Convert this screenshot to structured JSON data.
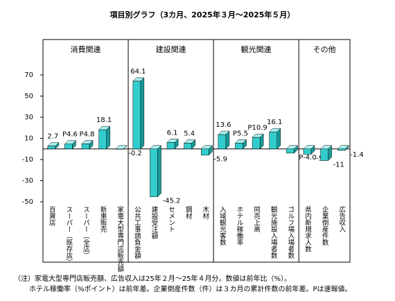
{
  "chart_data": {
    "type": "bar",
    "title": "項目別グラフ（3カ月、2025年３月～2025年５月）",
    "sections": [
      "消費関連",
      "建設関連",
      "観光関連",
      "その他"
    ],
    "categories": [
      "百貨店",
      "スーパー（既存店）",
      "スーパー（全店）",
      "新車販売",
      "家電大型専門店販売額",
      "公共工事請負金額",
      "建設受注額",
      "セメント",
      "鋼材",
      "木材",
      "入域観光客数",
      "ホテル稼働率",
      "同売上高",
      "観光施設入場者数",
      "ゴルフ場入場者数",
      "県内新規求人数",
      "企業倒産件数",
      "広告収入"
    ],
    "values": [
      2.7,
      4.6,
      4.8,
      18.1,
      -0.2,
      64.1,
      -45.2,
      6.1,
      5.4,
      -5.9,
      13.6,
      5.5,
      10.9,
      16.1,
      -4.0,
      -5.0,
      -11,
      -1.4
    ],
    "value_labels": [
      "2.7",
      "P4.6",
      "P4.8",
      "18.1",
      "-0.2",
      "64.1",
      "-45.2",
      "6.1",
      "5.4",
      "-5.9",
      "13.6",
      "P5.5",
      "P10.9",
      "16.1",
      "P-4.0",
      "-5.0",
      "-11",
      "-1.4"
    ],
    "color": "#33cccc",
    "ylim": [
      -50,
      70
    ],
    "yticks": [
      -50,
      -30,
      -10,
      10,
      30,
      50,
      70
    ],
    "notes": [
      "（注）家電大型専門店販売額、広告収入は25年２月～25年４月分。数値は前年比（%）。",
      "ホテル稼働率（%ポイント）は前年差。企業倒産件数（件）は３カ月の累計件数の前年差。Pは速報値。"
    ]
  }
}
